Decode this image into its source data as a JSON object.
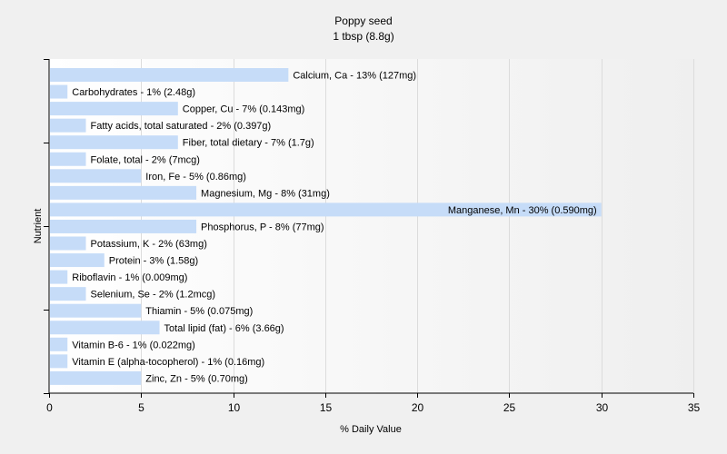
{
  "chart_data": {
    "type": "bar",
    "orientation": "horizontal",
    "title": "Poppy seed",
    "subtitle": "1 tbsp (8.8g)",
    "xlabel": "% Daily Value",
    "ylabel": "Nutrient",
    "xlim": [
      0,
      35
    ],
    "xticks": [
      0,
      5,
      10,
      15,
      20,
      25,
      30,
      35
    ],
    "grid": true,
    "bar_color": "#c6dcf8",
    "categories": [
      "Calcium, Ca",
      "Carbohydrates",
      "Copper, Cu",
      "Fatty acids, total saturated",
      "Fiber, total dietary",
      "Folate, total",
      "Iron, Fe",
      "Magnesium, Mg",
      "Manganese, Mn",
      "Phosphorus, P",
      "Potassium, K",
      "Protein",
      "Riboflavin",
      "Selenium, Se",
      "Thiamin",
      "Total lipid (fat)",
      "Vitamin B-6",
      "Vitamin E (alpha-tocopherol)",
      "Zinc, Zn"
    ],
    "values": [
      13,
      1,
      7,
      2,
      7,
      2,
      5,
      8,
      30,
      8,
      2,
      3,
      1,
      2,
      5,
      6,
      1,
      1,
      5
    ],
    "labels": [
      "Calcium, Ca - 13% (127mg)",
      "Carbohydrates - 1% (2.48g)",
      "Copper, Cu - 7% (0.143mg)",
      "Fatty acids, total saturated - 2% (0.397g)",
      "Fiber, total dietary - 7% (1.7g)",
      "Folate, total - 2% (7mcg)",
      "Iron, Fe - 5% (0.86mg)",
      "Magnesium, Mg - 8% (31mg)",
      "Manganese, Mn - 30% (0.590mg)",
      "Phosphorus, P - 8% (77mg)",
      "Potassium, K - 2% (63mg)",
      "Protein - 3% (1.58g)",
      "Riboflavin - 1% (0.009mg)",
      "Selenium, Se - 2% (1.2mcg)",
      "Thiamin - 5% (0.075mg)",
      "Total lipid (fat) - 6% (3.66g)",
      "Vitamin B-6 - 1% (0.022mg)",
      "Vitamin E (alpha-tocopherol) - 1% (0.16mg)",
      "Zinc, Zn - 5% (0.70mg)"
    ]
  }
}
